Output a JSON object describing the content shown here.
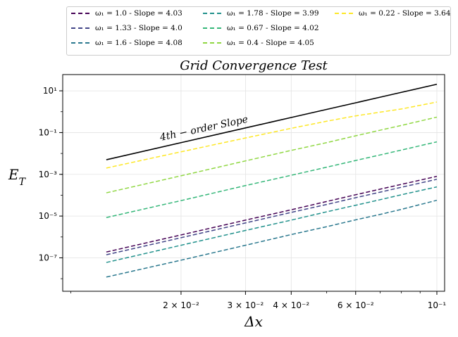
{
  "chart_data": {
    "type": "line",
    "title": "Grid Convergence Test",
    "xlabel": "Δx",
    "ylabel": "E_T",
    "xscale": "log",
    "yscale": "log",
    "xlim": [
      0.0095,
      0.105
    ],
    "ylim": [
      2.5e-09,
      60
    ],
    "grid": true,
    "legend_position": "above plot, 3 columns",
    "x": [
      0.0125,
      0.02,
      0.03,
      0.04,
      0.05,
      0.06,
      0.07,
      0.08,
      0.1
    ],
    "x_ticks": [
      {
        "value": 0.02,
        "label": "2 × 10⁻²"
      },
      {
        "value": 0.03,
        "label": "3 × 10⁻²"
      },
      {
        "value": 0.04,
        "label": "4 × 10⁻²"
      },
      {
        "value": 0.06,
        "label": "6 × 10⁻²"
      },
      {
        "value": 0.1,
        "label": "10⁻¹"
      }
    ],
    "y_ticks": [
      {
        "value": 1e-07,
        "label": "10⁻⁷"
      },
      {
        "value": 1e-05,
        "label": "10⁻⁵"
      },
      {
        "value": 0.001,
        "label": "10⁻³"
      },
      {
        "value": 0.1,
        "label": "10⁻¹"
      },
      {
        "value": 10,
        "label": "10¹"
      }
    ],
    "reference": {
      "name": "4th-order Slope",
      "label": "4th − order Slope",
      "color": "#000000",
      "values": [
        0.005,
        0.033,
        0.167,
        0.528,
        1.29,
        2.67,
        4.95,
        8.45,
        20.6
      ]
    },
    "series": [
      {
        "name": "ω₁ = 1.0 - Slope = 4.03",
        "omega": "1.0",
        "slope": "4.03",
        "color": "#440154",
        "values": [
          1.9e-07,
          1.25e-06,
          6.4e-06,
          2e-05,
          5e-05,
          0.000105,
          0.000195,
          0.00033,
          0.0008
        ]
      },
      {
        "name": "ω₁ = 1.33 - Slope = 4.0",
        "omega": "1.33",
        "slope": "4.0",
        "color": "#414487",
        "values": [
          1.4e-07,
          9.2e-07,
          4.7e-06,
          1.5e-05,
          3.6e-05,
          7.6e-05,
          0.00014,
          0.00024,
          0.00058
        ]
      },
      {
        "name": "ω₁ = 1.6 - Slope = 4.08",
        "omega": "1.6",
        "slope": "4.08",
        "color": "#2a788e",
        "values": [
          1.2e-08,
          7.7e-08,
          4e-07,
          1.3e-06,
          3.1e-06,
          6.6e-06,
          1.2e-05,
          2.1e-05,
          5.7e-05
        ]
      },
      {
        "name": "ω₁ = 1.78 - Slope = 3.99",
        "omega": "1.78",
        "slope": "3.99",
        "color": "#21918c",
        "values": [
          6e-08,
          4e-07,
          2.05e-06,
          6.4e-06,
          1.6e-05,
          3.3e-05,
          6.1e-05,
          0.000105,
          0.00025
        ]
      },
      {
        "name": "ω₁ = 0.67 - Slope = 4.02",
        "omega": "0.67",
        "slope": "4.02",
        "color": "#35b779",
        "values": [
          8.5e-06,
          5.5e-05,
          0.00029,
          0.0009,
          0.0022,
          0.0046,
          0.0085,
          0.0145,
          0.036
        ]
      },
      {
        "name": "ω₁ = 0.4 - Slope = 4.05",
        "omega": "0.4",
        "slope": "4.05",
        "color": "#90d743",
        "values": [
          0.00013,
          0.00085,
          0.0044,
          0.014,
          0.033,
          0.07,
          0.13,
          0.22,
          0.55
        ]
      },
      {
        "name": "ω₁ = 0.22 - Slope = 3.64",
        "omega": "0.22",
        "slope": "3.64",
        "color": "#fde725",
        "values": [
          0.002,
          0.012,
          0.055,
          0.16,
          0.35,
          0.63,
          0.95,
          1.35,
          2.9
        ]
      }
    ]
  }
}
